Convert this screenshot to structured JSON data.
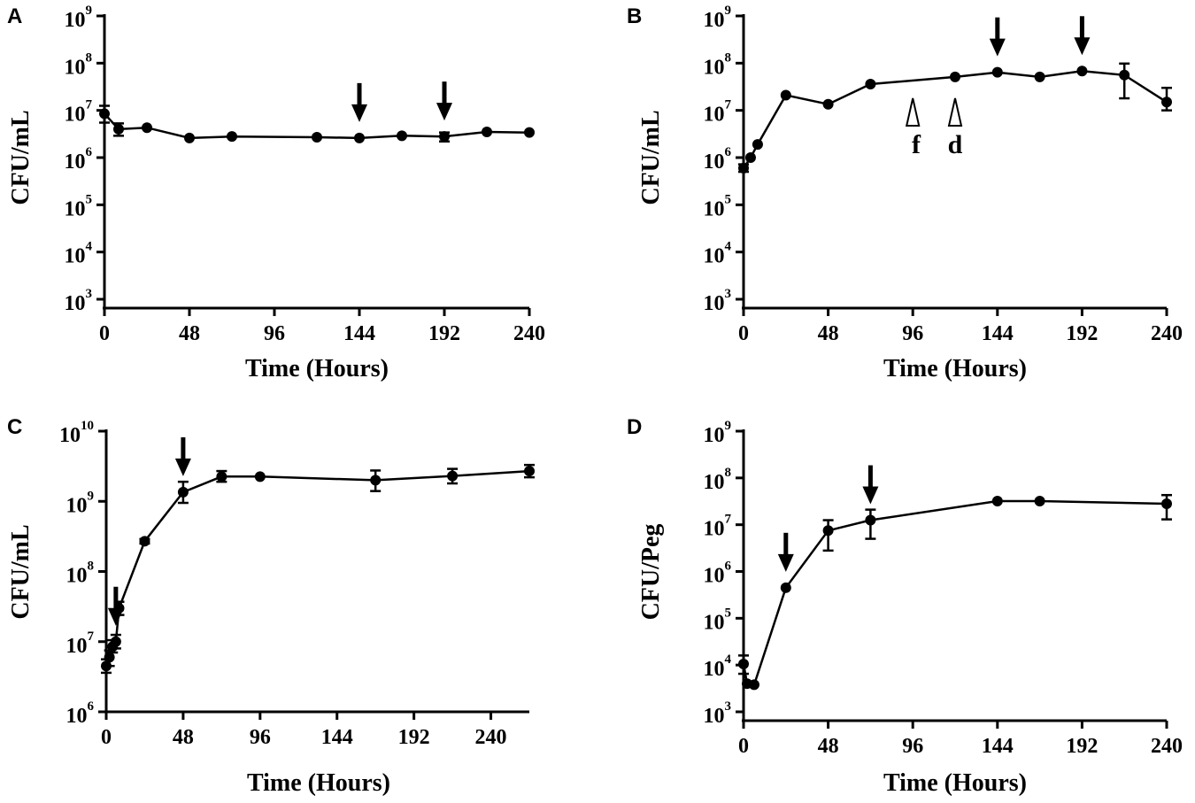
{
  "chart_data": [
    {
      "id": "A",
      "type": "line",
      "panel_label": "A",
      "xlabel": "Time (Hours)",
      "ylabel": "CFU/mL",
      "xscale": "linear",
      "yscale": "log",
      "xlim": [
        0,
        240
      ],
      "ylim_exp": [
        3,
        9
      ],
      "xticks": [
        0,
        48,
        96,
        144,
        192,
        240
      ],
      "yticks_exp": [
        3,
        4,
        5,
        6,
        7,
        8,
        9
      ],
      "series": [
        {
          "name": "CFU",
          "x": [
            0,
            8,
            24,
            48,
            72,
            120,
            144,
            168,
            192,
            216,
            240
          ],
          "y": [
            8500000.0,
            4000000.0,
            4300000.0,
            2600000.0,
            2800000.0,
            2700000.0,
            2600000.0,
            2900000.0,
            2800000.0,
            3500000.0,
            3400000.0
          ],
          "err_low": [
            5500000.0,
            2900000.0,
            4300000.0,
            2600000.0,
            2800000.0,
            2700000.0,
            2600000.0,
            2900000.0,
            2200000.0,
            3500000.0,
            3400000.0
          ],
          "err_high": [
            12500000.0,
            5300000.0,
            4300000.0,
            2600000.0,
            2800000.0,
            2700000.0,
            2600000.0,
            2900000.0,
            3400000.0,
            3500000.0,
            3400000.0
          ]
        }
      ],
      "arrows": [
        144,
        192
      ],
      "open_arrows": []
    },
    {
      "id": "B",
      "type": "line",
      "panel_label": "B",
      "xlabel": "Time (Hours)",
      "ylabel": "CFU/mL",
      "xscale": "linear",
      "yscale": "log",
      "xlim": [
        0,
        240
      ],
      "ylim_exp": [
        3,
        9
      ],
      "xticks": [
        0,
        48,
        96,
        144,
        192,
        240
      ],
      "yticks_exp": [
        3,
        4,
        5,
        6,
        7,
        8,
        9
      ],
      "series": [
        {
          "name": "CFU",
          "x": [
            0,
            4,
            8,
            24,
            48,
            72,
            120,
            144,
            168,
            192,
            216,
            240
          ],
          "y": [
            600000.0,
            1000000.0,
            1900000.0,
            21000000.0,
            13500000.0,
            36000000.0,
            51000000.0,
            64000000.0,
            51000000.0,
            68000000.0,
            56000000.0,
            15000000.0
          ],
          "err_low": [
            500000.0,
            1000000.0,
            1900000.0,
            21000000.0,
            13500000.0,
            36000000.0,
            51000000.0,
            64000000.0,
            51000000.0,
            68000000.0,
            18000000.0,
            10000000.0
          ],
          "err_high": [
            720000.0,
            1000000.0,
            1900000.0,
            21000000.0,
            13500000.0,
            36000000.0,
            51000000.0,
            64000000.0,
            51000000.0,
            68000000.0,
            98000000.0,
            30000000.0
          ]
        }
      ],
      "arrows": [
        144,
        192
      ],
      "open_arrows": [
        {
          "x": 96,
          "label": "f"
        },
        {
          "x": 120,
          "label": "d"
        }
      ]
    },
    {
      "id": "C",
      "type": "line",
      "panel_label": "C",
      "xlabel": "Time (Hours)",
      "ylabel": "CFU/mL",
      "xscale": "linear",
      "yscale": "log",
      "xlim": [
        0,
        264
      ],
      "ylim_exp": [
        6,
        10
      ],
      "xticks": [
        0,
        48,
        96,
        144,
        192,
        240
      ],
      "yticks_exp": [
        6,
        7,
        8,
        9,
        10
      ],
      "series": [
        {
          "name": "CFU",
          "x": [
            0,
            2,
            4,
            6,
            8,
            24,
            48,
            72,
            96,
            168,
            216,
            264
          ],
          "y": [
            4500000.0,
            6000000.0,
            8500000.0,
            10000000.0,
            30000000.0,
            270000000.0,
            1350000000.0,
            2250000000.0,
            2250000000.0,
            2000000000.0,
            2300000000.0,
            2700000000.0
          ],
          "err_low": [
            3600000.0,
            4500000.0,
            7000000.0,
            8000000.0,
            24000000.0,
            250000000.0,
            950000000.0,
            1900000000.0,
            2250000000.0,
            1400000000.0,
            1800000000.0,
            2200000000.0
          ],
          "err_high": [
            5600000.0,
            7500000.0,
            10500000.0,
            12500000.0,
            37000000.0,
            290000000.0,
            1900000000.0,
            2700000000.0,
            2250000000.0,
            2750000000.0,
            2900000000.0,
            3300000000.0
          ]
        }
      ],
      "arrows": [
        6,
        48
      ],
      "open_arrows": []
    },
    {
      "id": "D",
      "type": "line",
      "panel_label": "D",
      "xlabel": "Time (Hours)",
      "ylabel": "CFU/Peg",
      "xscale": "linear",
      "yscale": "log",
      "xlim": [
        0,
        240
      ],
      "ylim_exp": [
        3,
        9
      ],
      "xticks": [
        0,
        48,
        96,
        144,
        192,
        240
      ],
      "yticks_exp": [
        3,
        4,
        5,
        6,
        7,
        8,
        9
      ],
      "series": [
        {
          "name": "CFU",
          "x": [
            0,
            2,
            6,
            24,
            48,
            72,
            144,
            168,
            240
          ],
          "y": [
            10500.0,
            4000.0,
            3800.0,
            450000.0,
            7500000.0,
            12500000.0,
            32000000.0,
            32000000.0,
            28000000.0
          ],
          "err_low": [
            6500.0,
            4000.0,
            3800.0,
            450000.0,
            2800000.0,
            5000000.0,
            32000000.0,
            32000000.0,
            13000000.0
          ],
          "err_high": [
            16000.0,
            4000.0,
            3800.0,
            450000.0,
            12500000.0,
            21000000.0,
            32000000.0,
            32000000.0,
            43000000.0
          ]
        }
      ],
      "arrows": [
        24,
        72
      ],
      "open_arrows": []
    }
  ]
}
